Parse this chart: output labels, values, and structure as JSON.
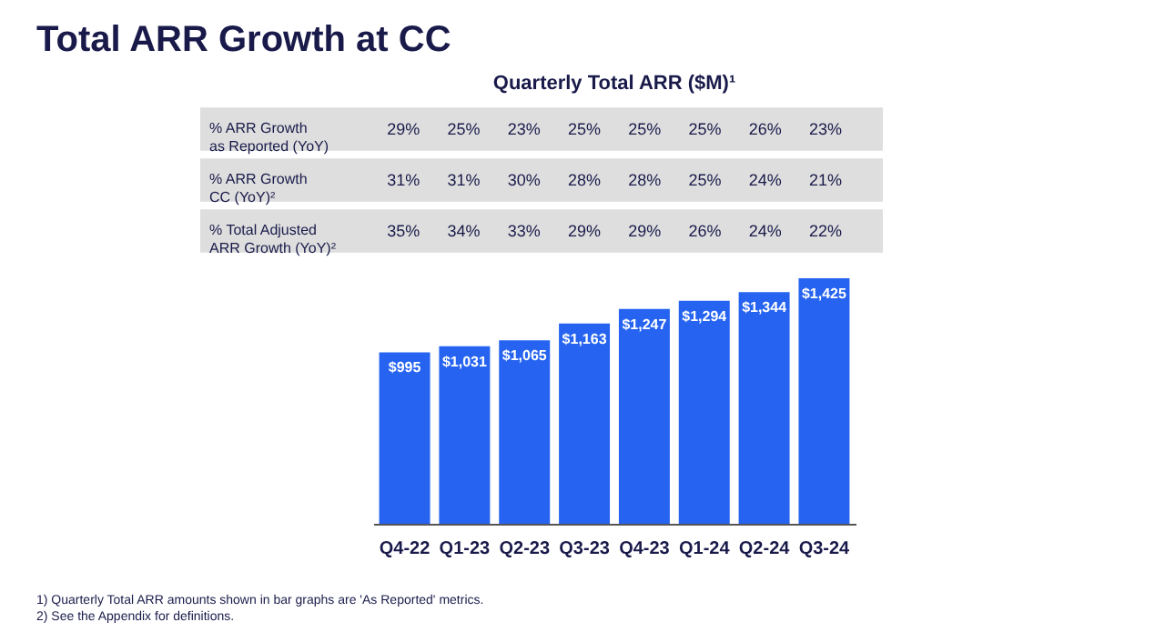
{
  "chart_data": {
    "type": "bar",
    "title": "Total ARR Growth at CC",
    "subtitle": "Quarterly Total ARR ($M)¹",
    "categories": [
      "Q4-22",
      "Q1-23",
      "Q2-23",
      "Q3-23",
      "Q4-23",
      "Q1-24",
      "Q2-24",
      "Q3-24"
    ],
    "values": [
      995,
      1031,
      1065,
      1163,
      1247,
      1294,
      1344,
      1425
    ],
    "value_labels": [
      "$995",
      "$1,031",
      "$1,065",
      "$1,163",
      "$1,247",
      "$1,294",
      "$1,344",
      "$1,425"
    ],
    "color": "#2563f0",
    "annotations": [
      "% ARR Growth as Reported (YoY)",
      "29%",
      "25%",
      "23%",
      "25%",
      "25%",
      "25%",
      "26%",
      "23%",
      "% ARR Growth CC (YoY)²",
      "31%",
      "31%",
      "30%",
      "28%",
      "28%",
      "25%",
      "24%",
      "21%",
      "% Total Adjusted ARR Growth (YoY)²",
      "35%",
      "34%",
      "33%",
      "29%",
      "29%",
      "26%",
      "24%",
      "22%",
      "1)   Quarterly Total ARR amounts shown in bar graphs are 'As Reported' metrics.",
      "2)   See the Appendix for definitions."
    ]
  }
}
